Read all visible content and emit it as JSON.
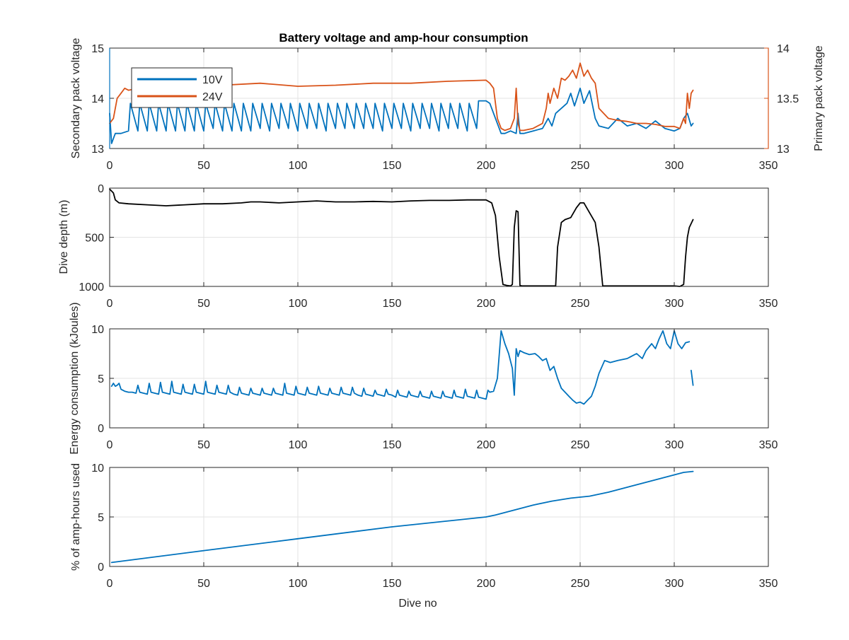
{
  "chart_data": [
    {
      "type": "line",
      "title": "Battery voltage and amp-hour consumption",
      "xlabel": "",
      "xlim": [
        0,
        350
      ],
      "x_ticks": [
        "0",
        "50",
        "100",
        "150",
        "200",
        "250",
        "300",
        "350"
      ],
      "ylabel": "Secondary pack voltage",
      "ylim": [
        13,
        15
      ],
      "y_ticks": [
        "13",
        "14",
        "15"
      ],
      "ylabel_right": "Primary pack voltage",
      "ylim_right": [
        13,
        14
      ],
      "y_ticks_right": [
        "13",
        "13.5",
        "14"
      ],
      "grid": true,
      "legend": "top-left",
      "colors": {
        "left_axis": "#0072BD",
        "right_axis": "#D95319"
      },
      "series": [
        {
          "name": "10V",
          "axis": "left",
          "color": "#0072BD",
          "x": [
            0,
            1,
            2,
            3,
            6,
            10,
            11,
            15,
            16,
            20,
            21,
            25,
            26,
            30,
            31,
            35,
            36,
            40,
            41,
            45,
            46,
            50,
            51,
            55,
            56,
            60,
            61,
            65,
            66,
            70,
            71,
            75,
            76,
            80,
            81,
            85,
            86,
            90,
            91,
            95,
            96,
            100,
            101,
            105,
            106,
            110,
            111,
            115,
            116,
            120,
            121,
            125,
            126,
            130,
            131,
            135,
            136,
            140,
            141,
            145,
            146,
            150,
            151,
            155,
            156,
            160,
            161,
            165,
            166,
            170,
            171,
            175,
            176,
            180,
            181,
            185,
            186,
            190,
            191,
            195,
            196,
            200,
            202,
            205,
            208,
            210,
            213,
            216,
            217,
            218,
            220,
            225,
            230,
            233,
            235,
            237,
            240,
            243,
            245,
            247,
            250,
            252,
            255,
            258,
            260,
            265,
            270,
            275,
            280,
            285,
            290,
            295,
            300,
            303,
            305,
            307,
            309,
            310
          ],
          "values": [
            13.7,
            13.1,
            13.2,
            13.3,
            13.3,
            13.35,
            13.9,
            13.35,
            13.9,
            13.35,
            13.9,
            13.35,
            13.9,
            13.35,
            13.9,
            13.35,
            13.9,
            13.35,
            13.9,
            13.35,
            13.9,
            13.35,
            13.9,
            13.4,
            13.9,
            13.35,
            13.9,
            13.35,
            13.9,
            13.35,
            13.9,
            13.35,
            13.9,
            13.4,
            13.9,
            13.35,
            13.9,
            13.4,
            13.9,
            13.4,
            13.9,
            13.35,
            13.9,
            13.4,
            13.9,
            13.4,
            13.9,
            13.35,
            13.9,
            13.4,
            13.9,
            13.4,
            13.9,
            13.4,
            13.9,
            13.4,
            13.9,
            13.4,
            13.9,
            13.35,
            13.9,
            13.4,
            13.9,
            13.4,
            13.9,
            13.35,
            13.9,
            13.4,
            13.9,
            13.4,
            13.9,
            13.35,
            13.9,
            13.4,
            13.9,
            13.4,
            13.9,
            13.35,
            13.9,
            13.4,
            13.95,
            13.95,
            13.9,
            13.6,
            13.3,
            13.3,
            13.35,
            13.3,
            13.7,
            13.3,
            13.3,
            13.35,
            13.4,
            13.6,
            13.45,
            13.7,
            13.8,
            13.9,
            14.1,
            13.85,
            14.2,
            13.9,
            14.15,
            13.6,
            13.45,
            13.4,
            13.6,
            13.45,
            13.5,
            13.4,
            13.55,
            13.4,
            13.35,
            13.4,
            13.6,
            13.7,
            13.45,
            13.5
          ]
        },
        {
          "name": "24V",
          "axis": "right",
          "color": "#D95319",
          "x": [
            0,
            2,
            4,
            6,
            8,
            10,
            20,
            40,
            60,
            80,
            100,
            120,
            140,
            160,
            180,
            200,
            202,
            204,
            206,
            208,
            210,
            213,
            215,
            216,
            217,
            218,
            220,
            225,
            230,
            232,
            233,
            234,
            236,
            238,
            240,
            242,
            244,
            246,
            248,
            250,
            252,
            254,
            256,
            258,
            260,
            265,
            270,
            275,
            280,
            285,
            290,
            295,
            300,
            303,
            305,
            306,
            307,
            308,
            309,
            310
          ],
          "values": [
            13.25,
            13.3,
            13.5,
            13.55,
            13.6,
            13.58,
            13.62,
            13.62,
            13.63,
            13.65,
            13.62,
            13.63,
            13.65,
            13.65,
            13.67,
            13.68,
            13.65,
            13.6,
            13.3,
            13.2,
            13.18,
            13.2,
            13.3,
            13.6,
            13.25,
            13.18,
            13.18,
            13.2,
            13.25,
            13.4,
            13.55,
            13.45,
            13.6,
            13.5,
            13.7,
            13.68,
            13.72,
            13.78,
            13.7,
            13.85,
            13.72,
            13.78,
            13.7,
            13.65,
            13.4,
            13.3,
            13.28,
            13.27,
            13.25,
            13.25,
            13.24,
            13.22,
            13.22,
            13.2,
            13.3,
            13.25,
            13.55,
            13.4,
            13.55,
            13.58
          ]
        }
      ]
    },
    {
      "type": "line",
      "title": "",
      "xlabel": "",
      "xlim": [
        0,
        350
      ],
      "x_ticks": [
        "0",
        "50",
        "100",
        "150",
        "200",
        "250",
        "300",
        "350"
      ],
      "ylabel": "Dive depth (m)",
      "ylim": [
        0,
        1000
      ],
      "y_reversed": true,
      "y_ticks": [
        "0",
        "500",
        "1000"
      ],
      "grid": true,
      "series": [
        {
          "color": "#000000",
          "x": [
            0,
            2,
            3,
            5,
            10,
            20,
            30,
            40,
            50,
            60,
            70,
            75,
            80,
            90,
            100,
            110,
            120,
            130,
            140,
            150,
            160,
            170,
            180,
            190,
            200,
            203,
            205,
            207,
            209,
            211,
            213,
            214,
            215,
            216,
            217,
            218,
            219,
            220,
            225,
            230,
            235,
            237,
            238,
            240,
            242,
            245,
            248,
            250,
            252,
            255,
            258,
            260,
            262,
            270,
            280,
            290,
            300,
            303,
            305,
            306,
            307,
            308,
            310
          ],
          "values": [
            10,
            50,
            120,
            150,
            160,
            170,
            180,
            170,
            160,
            160,
            150,
            140,
            140,
            150,
            140,
            130,
            140,
            140,
            135,
            140,
            130,
            125,
            125,
            120,
            120,
            150,
            280,
            700,
            980,
            990,
            995,
            980,
            400,
            230,
            240,
            990,
            995,
            995,
            995,
            995,
            995,
            995,
            600,
            350,
            320,
            300,
            200,
            150,
            150,
            250,
            350,
            600,
            995,
            995,
            995,
            995,
            995,
            1000,
            980,
            700,
            500,
            400,
            320
          ]
        }
      ]
    },
    {
      "type": "line",
      "title": "",
      "xlabel": "",
      "xlim": [
        0,
        350
      ],
      "x_ticks": [
        "0",
        "50",
        "100",
        "150",
        "200",
        "250",
        "300",
        "350"
      ],
      "ylabel": "Energy consumption (kJoules)",
      "ylim": [
        0,
        10
      ],
      "y_ticks": [
        "0",
        "5",
        "10"
      ],
      "grid": true,
      "series": [
        {
          "color": "#0072BD",
          "x": [
            1,
            2,
            3,
            4,
            5,
            6,
            8,
            10,
            12,
            14,
            15,
            16,
            18,
            20,
            21,
            22,
            24,
            26,
            27,
            28,
            30,
            32,
            33,
            34,
            36,
            38,
            39,
            40,
            42,
            44,
            45,
            46,
            48,
            50,
            51,
            52,
            54,
            56,
            57,
            58,
            60,
            62,
            63,
            64,
            66,
            68,
            69,
            70,
            72,
            74,
            75,
            76,
            78,
            80,
            81,
            82,
            84,
            86,
            87,
            88,
            90,
            92,
            93,
            94,
            96,
            98,
            99,
            100,
            102,
            104,
            105,
            106,
            108,
            110,
            111,
            112,
            114,
            116,
            117,
            118,
            120,
            122,
            123,
            124,
            126,
            128,
            129,
            130,
            132,
            134,
            135,
            136,
            138,
            140,
            141,
            142,
            144,
            146,
            147,
            148,
            150,
            152,
            153,
            154,
            156,
            158,
            159,
            160,
            162,
            164,
            165,
            166,
            168,
            170,
            171,
            172,
            174,
            176,
            177,
            178,
            180,
            182,
            183,
            184,
            186,
            188,
            189,
            190,
            192,
            194,
            195,
            196,
            198,
            200,
            201,
            202,
            204,
            206,
            208,
            210,
            212,
            214,
            215,
            216,
            217,
            218,
            220,
            223,
            226,
            228,
            230,
            232,
            234,
            236,
            238,
            240,
            242,
            244,
            246,
            248,
            250,
            252,
            254,
            256,
            258,
            260,
            263,
            266,
            270,
            275,
            280,
            283,
            285,
            288,
            290,
            292,
            294,
            296,
            298,
            300,
            302,
            304,
            306,
            308
          ],
          "values": [
            4.2,
            4.5,
            4.2,
            4.3,
            4.5,
            3.9,
            3.7,
            3.6,
            3.6,
            3.5,
            4.3,
            3.6,
            3.5,
            3.4,
            4.5,
            3.6,
            3.5,
            3.4,
            4.6,
            3.6,
            3.5,
            3.4,
            4.7,
            3.6,
            3.5,
            3.4,
            4.4,
            3.6,
            3.5,
            3.4,
            4.4,
            3.6,
            3.5,
            3.4,
            4.7,
            3.6,
            3.5,
            3.4,
            4.3,
            3.6,
            3.5,
            3.4,
            4.3,
            3.6,
            3.4,
            3.3,
            4.1,
            3.5,
            3.4,
            3.3,
            4.0,
            3.5,
            3.4,
            3.3,
            4.0,
            3.5,
            3.4,
            3.3,
            4.0,
            3.5,
            3.4,
            3.3,
            4.5,
            3.5,
            3.4,
            3.3,
            4.2,
            3.5,
            3.4,
            3.3,
            4.1,
            3.5,
            3.4,
            3.3,
            4.2,
            3.5,
            3.4,
            3.3,
            4.0,
            3.5,
            3.4,
            3.3,
            4.1,
            3.5,
            3.4,
            3.3,
            4.1,
            3.5,
            3.3,
            3.2,
            4.0,
            3.4,
            3.3,
            3.2,
            3.8,
            3.4,
            3.3,
            3.2,
            3.9,
            3.4,
            3.3,
            3.1,
            3.8,
            3.3,
            3.2,
            3.1,
            3.7,
            3.3,
            3.2,
            3.1,
            3.7,
            3.2,
            3.1,
            3.0,
            3.7,
            3.2,
            3.1,
            3.0,
            3.7,
            3.2,
            3.1,
            3.0,
            3.8,
            3.2,
            3.1,
            3.0,
            3.9,
            3.2,
            3.1,
            3.0,
            3.8,
            3.1,
            3.0,
            2.9,
            3.8,
            3.6,
            3.7,
            5.0,
            9.8,
            8.5,
            7.5,
            6.0,
            3.3,
            8.0,
            7.2,
            7.8,
            7.6,
            7.4,
            7.5,
            7.2,
            6.8,
            7.0,
            5.8,
            6.2,
            5.0,
            4.0,
            3.6,
            3.2,
            2.8,
            2.5,
            2.6,
            2.4,
            2.8,
            3.2,
            4.2,
            5.5,
            6.8,
            6.6,
            6.8,
            7.0,
            7.5,
            7.0,
            7.8,
            8.5,
            8.0,
            9.0,
            9.8,
            8.5,
            8.0,
            9.8,
            8.5,
            8.0,
            8.6,
            8.7
          ]
        },
        {
          "color": "#0072BD",
          "x": [
            309,
            310
          ],
          "values": [
            5.8,
            4.3
          ]
        }
      ]
    },
    {
      "type": "line",
      "title": "",
      "xlabel": "Dive no",
      "xlim": [
        0,
        350
      ],
      "x_ticks": [
        "0",
        "50",
        "100",
        "150",
        "200",
        "250",
        "300",
        "350"
      ],
      "ylabel": "% of amp-hours used",
      "ylim": [
        0,
        10
      ],
      "y_ticks": [
        "0",
        "5",
        "10"
      ],
      "grid": true,
      "series": [
        {
          "color": "#0072BD",
          "x": [
            1,
            50,
            100,
            150,
            200,
            205,
            215,
            225,
            235,
            245,
            255,
            265,
            275,
            285,
            295,
            305,
            310
          ],
          "values": [
            0.4,
            1.6,
            2.8,
            4.0,
            5.0,
            5.2,
            5.7,
            6.2,
            6.6,
            6.9,
            7.1,
            7.5,
            8.0,
            8.5,
            9.0,
            9.5,
            9.6
          ]
        }
      ]
    }
  ]
}
